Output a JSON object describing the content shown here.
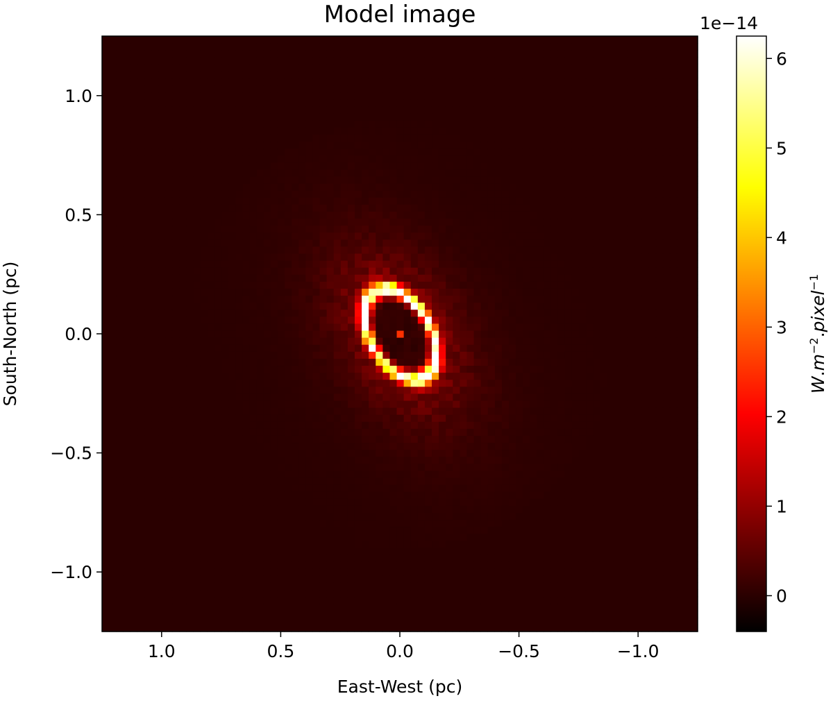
{
  "chart_data": {
    "type": "heatmap",
    "title": "Model image",
    "xlabel": "East-West (pc)",
    "ylabel": "South-North (pc)",
    "xlim": [
      1.25,
      -1.25
    ],
    "ylim": [
      -1.25,
      1.25
    ],
    "x_ticks": [
      1.0,
      0.5,
      0.0,
      -0.5,
      -1.0
    ],
    "x_tick_labels": [
      "1.0",
      "0.5",
      "0.0",
      "−0.5",
      "−1.0"
    ],
    "y_ticks": [
      1.0,
      0.5,
      0.0,
      -0.5,
      -1.0
    ],
    "y_tick_labels": [
      "1.0",
      "0.5",
      "0.0",
      "−0.5",
      "−1.0"
    ],
    "grid": false,
    "colormap": "hot",
    "colormap_stops": [
      "#000000",
      "#ff0000",
      "#ffff00",
      "#ffffff"
    ],
    "colorbar": {
      "label": "W.m^-2.pixel^-1",
      "label_parts": {
        "W": "W",
        "m": "m",
        "m_exp": "−2",
        "pixel": "pixel",
        "pixel_exp": "−1"
      },
      "offset_label": "1e−14",
      "range": [
        -0.4,
        6.25
      ],
      "ticks": [
        0,
        1,
        2,
        3,
        4,
        5,
        6
      ],
      "tick_labels": [
        "0",
        "1",
        "2",
        "3",
        "4",
        "5",
        "6"
      ]
    },
    "image": {
      "grid_size": 85,
      "extent_pc": [
        -1.25,
        1.25
      ],
      "background_value": 0.0,
      "ring": {
        "center": [
          0.0,
          0.0
        ],
        "semi_major_pc": 0.205,
        "semi_minor_pc": 0.125,
        "position_angle_deg": 30,
        "width_pc": 0.03,
        "peak_value": 6.2
      },
      "halo": {
        "scale_pc": 0.11,
        "peak_value": 1.3
      },
      "central_source": {
        "x_pc": 0.0,
        "y_pc": 0.0,
        "value": 2.5
      }
    }
  }
}
